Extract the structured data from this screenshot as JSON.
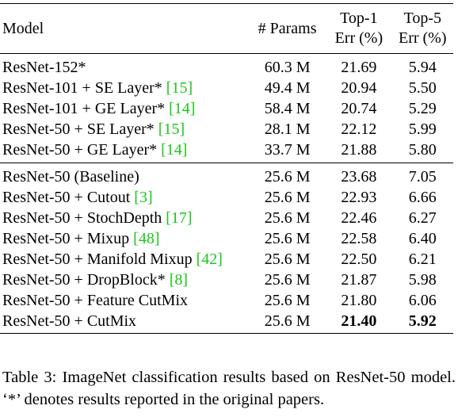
{
  "table": {
    "headers": {
      "model": "Model",
      "params": "# Params",
      "top1_line1": "Top-1",
      "top1_line2": "Err (%)",
      "top5_line1": "Top-5",
      "top5_line2": "Err (%)"
    },
    "group1": [
      {
        "model": "ResNet-152*",
        "cite": "",
        "params": "60.3 M",
        "top1": "21.69",
        "top5": "5.94"
      },
      {
        "model": "ResNet-101 + SE Layer*",
        "cite": "[15]",
        "params": "49.4 M",
        "top1": "20.94",
        "top5": "5.50"
      },
      {
        "model": "ResNet-101 + GE Layer*",
        "cite": "[14]",
        "params": "58.4 M",
        "top1": "20.74",
        "top5": "5.29"
      },
      {
        "model": "ResNet-50 + SE Layer*",
        "cite": "[15]",
        "params": "28.1 M",
        "top1": "22.12",
        "top5": "5.99"
      },
      {
        "model": "ResNet-50 + GE Layer*",
        "cite": "[14]",
        "params": "33.7 M",
        "top1": "21.88",
        "top5": "5.80"
      }
    ],
    "group2": [
      {
        "model": "ResNet-50 (Baseline)",
        "cite": "",
        "params": "25.6 M",
        "top1": "23.68",
        "top5": "7.05"
      },
      {
        "model": "ResNet-50 + Cutout",
        "cite": "[3]",
        "params": "25.6 M",
        "top1": "22.93",
        "top5": "6.66"
      },
      {
        "model": "ResNet-50 + StochDepth",
        "cite": "[17]",
        "params": "25.6 M",
        "top1": "22.46",
        "top5": "6.27"
      },
      {
        "model": "ResNet-50 + Mixup",
        "cite": "[48]",
        "params": "25.6 M",
        "top1": "22.58",
        "top5": "6.40"
      },
      {
        "model": "ResNet-50 + Manifold Mixup",
        "cite": "[42]",
        "params": "25.6 M",
        "top1": "22.50",
        "top5": "6.21"
      },
      {
        "model": "ResNet-50 + DropBlock*",
        "cite": "[8]",
        "params": "25.6 M",
        "top1": "21.87",
        "top5": "5.98"
      },
      {
        "model": "ResNet-50 + Feature CutMix",
        "cite": "",
        "params": "25.6 M",
        "top1": "21.80",
        "top5": "6.06"
      },
      {
        "model": "ResNet-50 + CutMix",
        "cite": "",
        "params": "25.6 M",
        "top1": "21.40",
        "top5": "5.92",
        "bold": true
      }
    ]
  },
  "caption": "Table 3: ImageNet classification results based on ResNet-50 model. ‘*’ denotes results reported in the original papers.",
  "colors": {
    "citation": "#19c919",
    "text": "#000000"
  }
}
